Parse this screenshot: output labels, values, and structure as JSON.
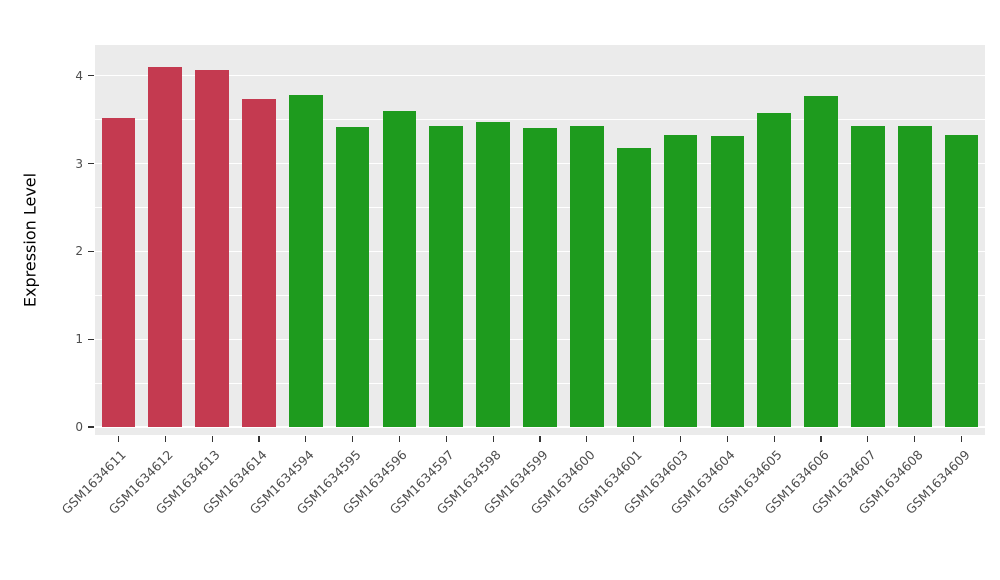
{
  "chart_data": {
    "type": "bar",
    "title": "",
    "xlabel": "",
    "ylabel": "Expression Level",
    "categories": [
      "GSM1634611",
      "GSM1634612",
      "GSM1634613",
      "GSM1634614",
      "GSM1634594",
      "GSM1634595",
      "GSM1634596",
      "GSM1634597",
      "GSM1634598",
      "GSM1634599",
      "GSM1634600",
      "GSM1634601",
      "GSM1634603",
      "GSM1634604",
      "GSM1634605",
      "GSM1634606",
      "GSM1634607",
      "GSM1634608",
      "GSM1634609"
    ],
    "values": [
      3.52,
      4.1,
      4.07,
      3.73,
      3.78,
      3.42,
      3.6,
      3.43,
      3.47,
      3.41,
      3.43,
      3.18,
      3.32,
      3.31,
      3.58,
      3.77,
      3.43,
      3.43,
      3.32
    ],
    "groups": [
      "red",
      "red",
      "red",
      "red",
      "green",
      "green",
      "green",
      "green",
      "green",
      "green",
      "green",
      "green",
      "green",
      "green",
      "green",
      "green",
      "green",
      "green",
      "green"
    ],
    "colors": {
      "red": "#C43A50",
      "green": "#1E9B1E"
    },
    "ylim": [
      0,
      4.35
    ],
    "yticks": [
      0,
      1,
      2,
      3,
      4
    ],
    "minor_ticks": [
      0.5,
      1.5,
      2.5,
      3.5
    ],
    "panel_bg": "#EBEBEB",
    "grid_color": "#FFFFFF",
    "legend": "none",
    "grid": "on"
  }
}
